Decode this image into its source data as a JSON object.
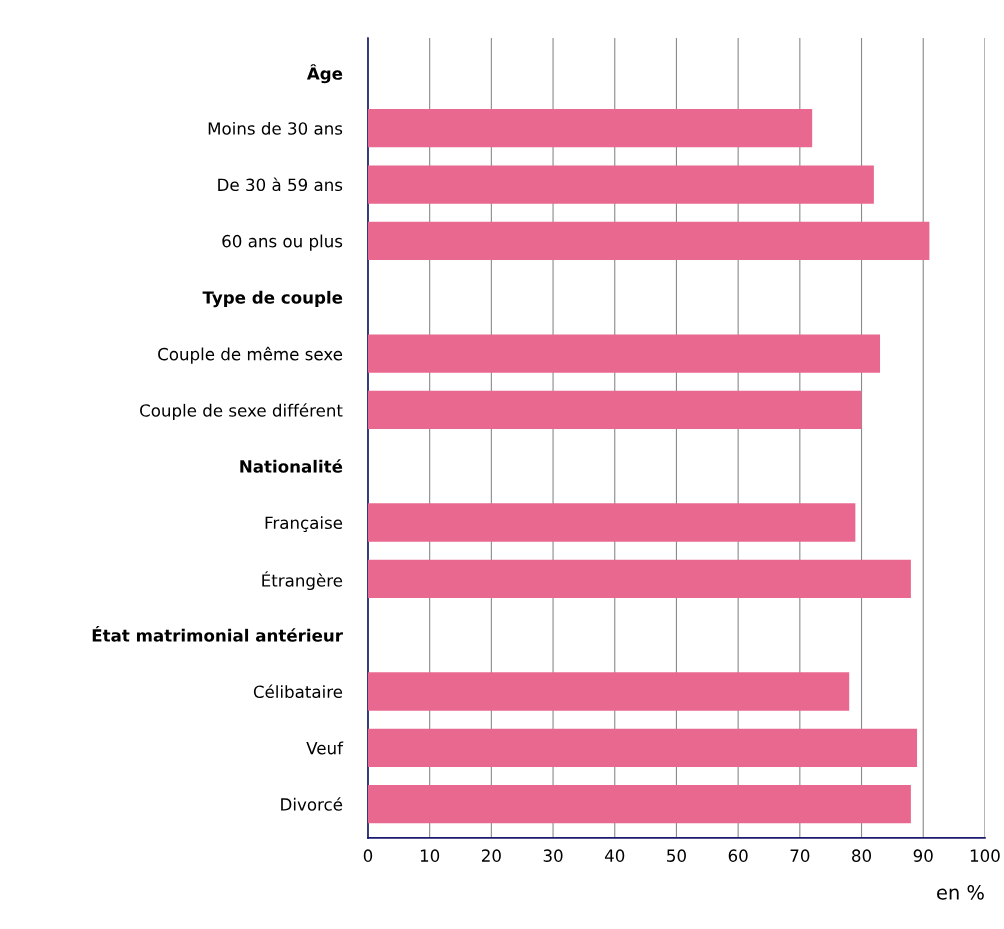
{
  "chart_data": {
    "type": "bar",
    "orientation": "horizontal",
    "categories": [
      "Âge",
      "Moins de 30 ans",
      "De 30 à 59 ans",
      "60 ans ou plus",
      "Type de couple",
      "Couple de même sexe",
      "Couple de sexe différent",
      "Nationalité",
      "Française",
      "Étrangère",
      "État matrimonial antérieur",
      "Célibataire",
      "Veuf",
      "Divorcé"
    ],
    "values": [
      null,
      72,
      82,
      91,
      null,
      83,
      80,
      null,
      79,
      88,
      null,
      78,
      89,
      88
    ],
    "color": "#e8688f",
    "xlim": [
      0,
      100
    ],
    "xticks": [
      0,
      10,
      20,
      30,
      40,
      50,
      60,
      70,
      80,
      90,
      100
    ],
    "xlabel": "en %",
    "grid": "x"
  }
}
